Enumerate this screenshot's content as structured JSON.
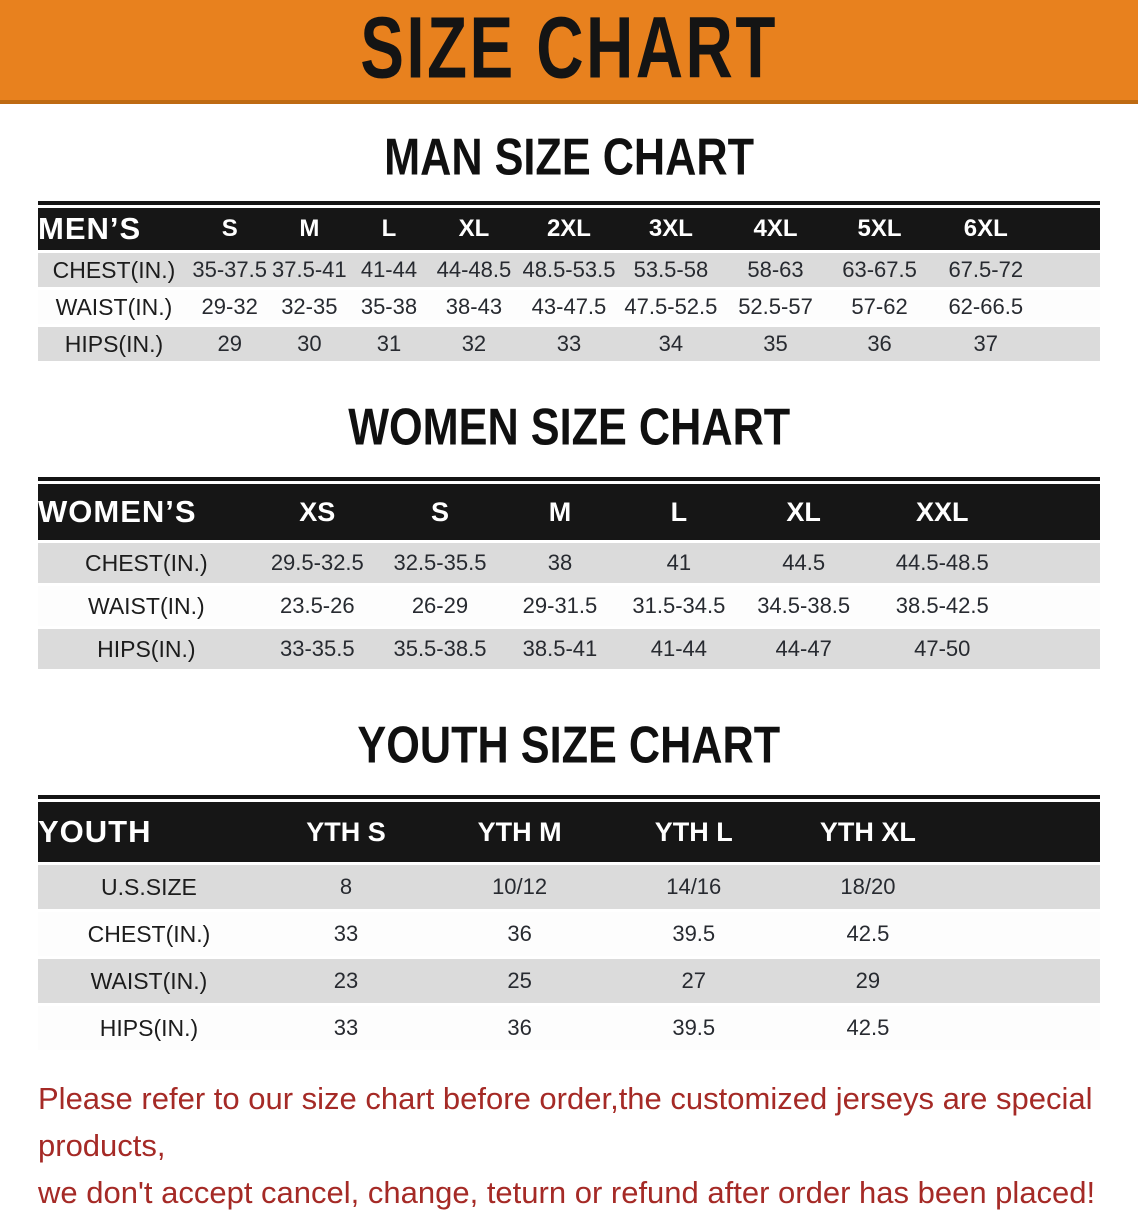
{
  "banner": {
    "title": "SIZE CHART"
  },
  "colors": {
    "banner_orange": "#E8811E",
    "banner_bottom_edge": "#BE6A12",
    "table_header_black": "#161616",
    "row_stripe_gray": "#DBDBDB",
    "disclaimer_red": "#A52A26"
  },
  "sections": [
    {
      "heading": "MAN SIZE CHART",
      "table": {
        "group_label": "MEN’S",
        "columns": [
          "S",
          "M",
          "L",
          "XL",
          "2XL",
          "3XL",
          "4XL",
          "5XL",
          "6XL"
        ],
        "rows": [
          {
            "label": "CHEST(IN.)",
            "values": [
              "35-37.5",
              "37.5-41",
              "41-44",
              "44-48.5",
              "48.5-53.5",
              "53.5-58",
              "58-63",
              "63-67.5",
              "67.5-72"
            ]
          },
          {
            "label": "WAIST(IN.)",
            "values": [
              "29-32",
              "32-35",
              "35-38",
              "38-43",
              "43-47.5",
              "47.5-52.5",
              "52.5-57",
              "57-62",
              "62-66.5"
            ]
          },
          {
            "label": "HIPS(IN.)",
            "values": [
              "29",
              "30",
              "31",
              "32",
              "33",
              "34",
              "35",
              "36",
              "37"
            ]
          }
        ]
      }
    },
    {
      "heading": "WOMEN SIZE CHART",
      "table": {
        "group_label": "WOMEN’S",
        "columns": [
          "XS",
          "S",
          "M",
          "L",
          "XL",
          "XXL"
        ],
        "rows": [
          {
            "label": "CHEST(IN.)",
            "values": [
              "29.5-32.5",
              "32.5-35.5",
              "38",
              "41",
              "44.5",
              "44.5-48.5"
            ]
          },
          {
            "label": "WAIST(IN.)",
            "values": [
              "23.5-26",
              "26-29",
              "29-31.5",
              "31.5-34.5",
              "34.5-38.5",
              "38.5-42.5"
            ]
          },
          {
            "label": "HIPS(IN.)",
            "values": [
              "33-35.5",
              "35.5-38.5",
              "38.5-41",
              "41-44",
              "44-47",
              "47-50"
            ]
          }
        ]
      }
    },
    {
      "heading": "YOUTH SIZE CHART",
      "table": {
        "group_label": "YOUTH",
        "columns": [
          "YTH S",
          "YTH M",
          "YTH L",
          "YTH XL"
        ],
        "rows": [
          {
            "label": "U.S.SIZE",
            "values": [
              "8",
              "10/12",
              "14/16",
              "18/20"
            ]
          },
          {
            "label": "CHEST(IN.)",
            "values": [
              "33",
              "36",
              "39.5",
              "42.5"
            ]
          },
          {
            "label": "WAIST(IN.)",
            "values": [
              "23",
              "25",
              "27",
              "29"
            ]
          },
          {
            "label": "HIPS(IN.)",
            "values": [
              "33",
              "36",
              "39.5",
              "42.5"
            ]
          }
        ]
      }
    }
  ],
  "disclaimer": {
    "line1": "Please refer to our size chart before order,the customized jerseys are special products,",
    "line2": "we don't accept cancel, change, teturn or refund after order has been placed!"
  }
}
